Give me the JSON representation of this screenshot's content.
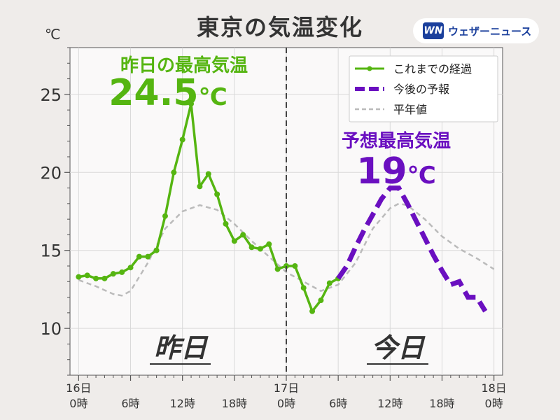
{
  "header": {
    "title": "東京の気温変化",
    "brand_logo": "WN",
    "brand_name": "ウェザーニュース"
  },
  "chart_data": {
    "type": "line",
    "title": "東京の気温変化",
    "ylabel": "℃",
    "ylim": [
      7,
      28
    ],
    "yticks": [
      10,
      15,
      20,
      25
    ],
    "xlim": [
      -1,
      49
    ],
    "xticks": [
      {
        "x": 0,
        "lines": [
          "16日",
          "0時"
        ]
      },
      {
        "x": 6,
        "lines": [
          "6時"
        ]
      },
      {
        "x": 12,
        "lines": [
          "12時"
        ]
      },
      {
        "x": 18,
        "lines": [
          "18時"
        ]
      },
      {
        "x": 24,
        "lines": [
          "17日",
          "0時"
        ]
      },
      {
        "x": 30,
        "lines": [
          "6時"
        ]
      },
      {
        "x": 36,
        "lines": [
          "12時"
        ]
      },
      {
        "x": 42,
        "lines": [
          "18時"
        ]
      },
      {
        "x": 48,
        "lines": [
          "18日",
          "0時"
        ]
      }
    ],
    "grid": true,
    "legend_position": "top-right",
    "series": [
      {
        "name": "これまでの経過",
        "color": "#55b511",
        "style": "solid-marker",
        "points": [
          [
            0,
            13.3
          ],
          [
            1,
            13.4
          ],
          [
            2,
            13.2
          ],
          [
            3,
            13.2
          ],
          [
            4,
            13.5
          ],
          [
            5,
            13.6
          ],
          [
            6,
            13.9
          ],
          [
            7,
            14.6
          ],
          [
            8,
            14.6
          ],
          [
            9,
            15.0
          ],
          [
            10,
            17.2
          ],
          [
            11,
            20.0
          ],
          [
            12,
            22.1
          ],
          [
            13,
            24.4
          ],
          [
            14,
            19.1
          ],
          [
            15,
            19.9
          ],
          [
            16,
            18.6
          ],
          [
            17,
            16.7
          ],
          [
            18,
            15.6
          ],
          [
            19,
            16.0
          ],
          [
            20,
            15.2
          ],
          [
            21,
            15.1
          ],
          [
            22,
            15.4
          ],
          [
            23,
            13.8
          ],
          [
            24,
            14.0
          ],
          [
            25,
            14.0
          ],
          [
            26,
            12.6
          ],
          [
            27,
            11.1
          ],
          [
            28,
            11.8
          ],
          [
            29,
            12.9
          ],
          [
            30,
            13.2
          ]
        ]
      },
      {
        "name": "今後の予報",
        "color": "#6a0fc0",
        "style": "thick-dash",
        "points": [
          [
            30,
            13.2
          ],
          [
            31,
            14.0
          ],
          [
            32,
            15.2
          ],
          [
            33,
            16.3
          ],
          [
            34,
            17.3
          ],
          [
            35,
            18.3
          ],
          [
            36,
            19.0
          ],
          [
            37,
            19.0
          ],
          [
            38,
            18.0
          ],
          [
            39,
            16.9
          ],
          [
            40,
            15.8
          ],
          [
            41,
            14.7
          ],
          [
            42,
            13.7
          ],
          [
            43,
            12.8
          ],
          [
            44,
            13.0
          ],
          [
            45,
            12.0
          ],
          [
            46,
            12.0
          ],
          [
            47,
            11.1
          ]
        ]
      },
      {
        "name": "平年値",
        "color": "#bbbbbb",
        "style": "dashed",
        "points": [
          [
            0,
            13.1
          ],
          [
            2,
            12.7
          ],
          [
            4,
            12.2
          ],
          [
            5,
            12.1
          ],
          [
            6,
            12.4
          ],
          [
            8,
            14.2
          ],
          [
            10,
            16.4
          ],
          [
            12,
            17.5
          ],
          [
            14,
            17.9
          ],
          [
            16,
            17.6
          ],
          [
            18,
            16.7
          ],
          [
            20,
            15.6
          ],
          [
            22,
            14.6
          ],
          [
            24,
            13.6
          ],
          [
            26,
            13.0
          ],
          [
            28,
            12.4
          ],
          [
            30,
            12.8
          ],
          [
            32,
            14.2
          ],
          [
            34,
            16.4
          ],
          [
            36,
            17.7
          ],
          [
            37,
            18.0
          ],
          [
            38,
            17.9
          ],
          [
            40,
            17.0
          ],
          [
            42,
            15.9
          ],
          [
            44,
            15.1
          ],
          [
            46,
            14.5
          ],
          [
            48,
            13.8
          ]
        ]
      }
    ],
    "annotations": {
      "yesterday_high_label": "昨日の最高気温",
      "yesterday_high_value": "24.5",
      "yesterday_high_unit": "℃",
      "forecast_high_label": "予想最高気温",
      "forecast_high_value": "19",
      "forecast_high_unit": "℃",
      "yesterday_word": "昨日",
      "today_word": "今日",
      "divider_x": 24
    }
  }
}
